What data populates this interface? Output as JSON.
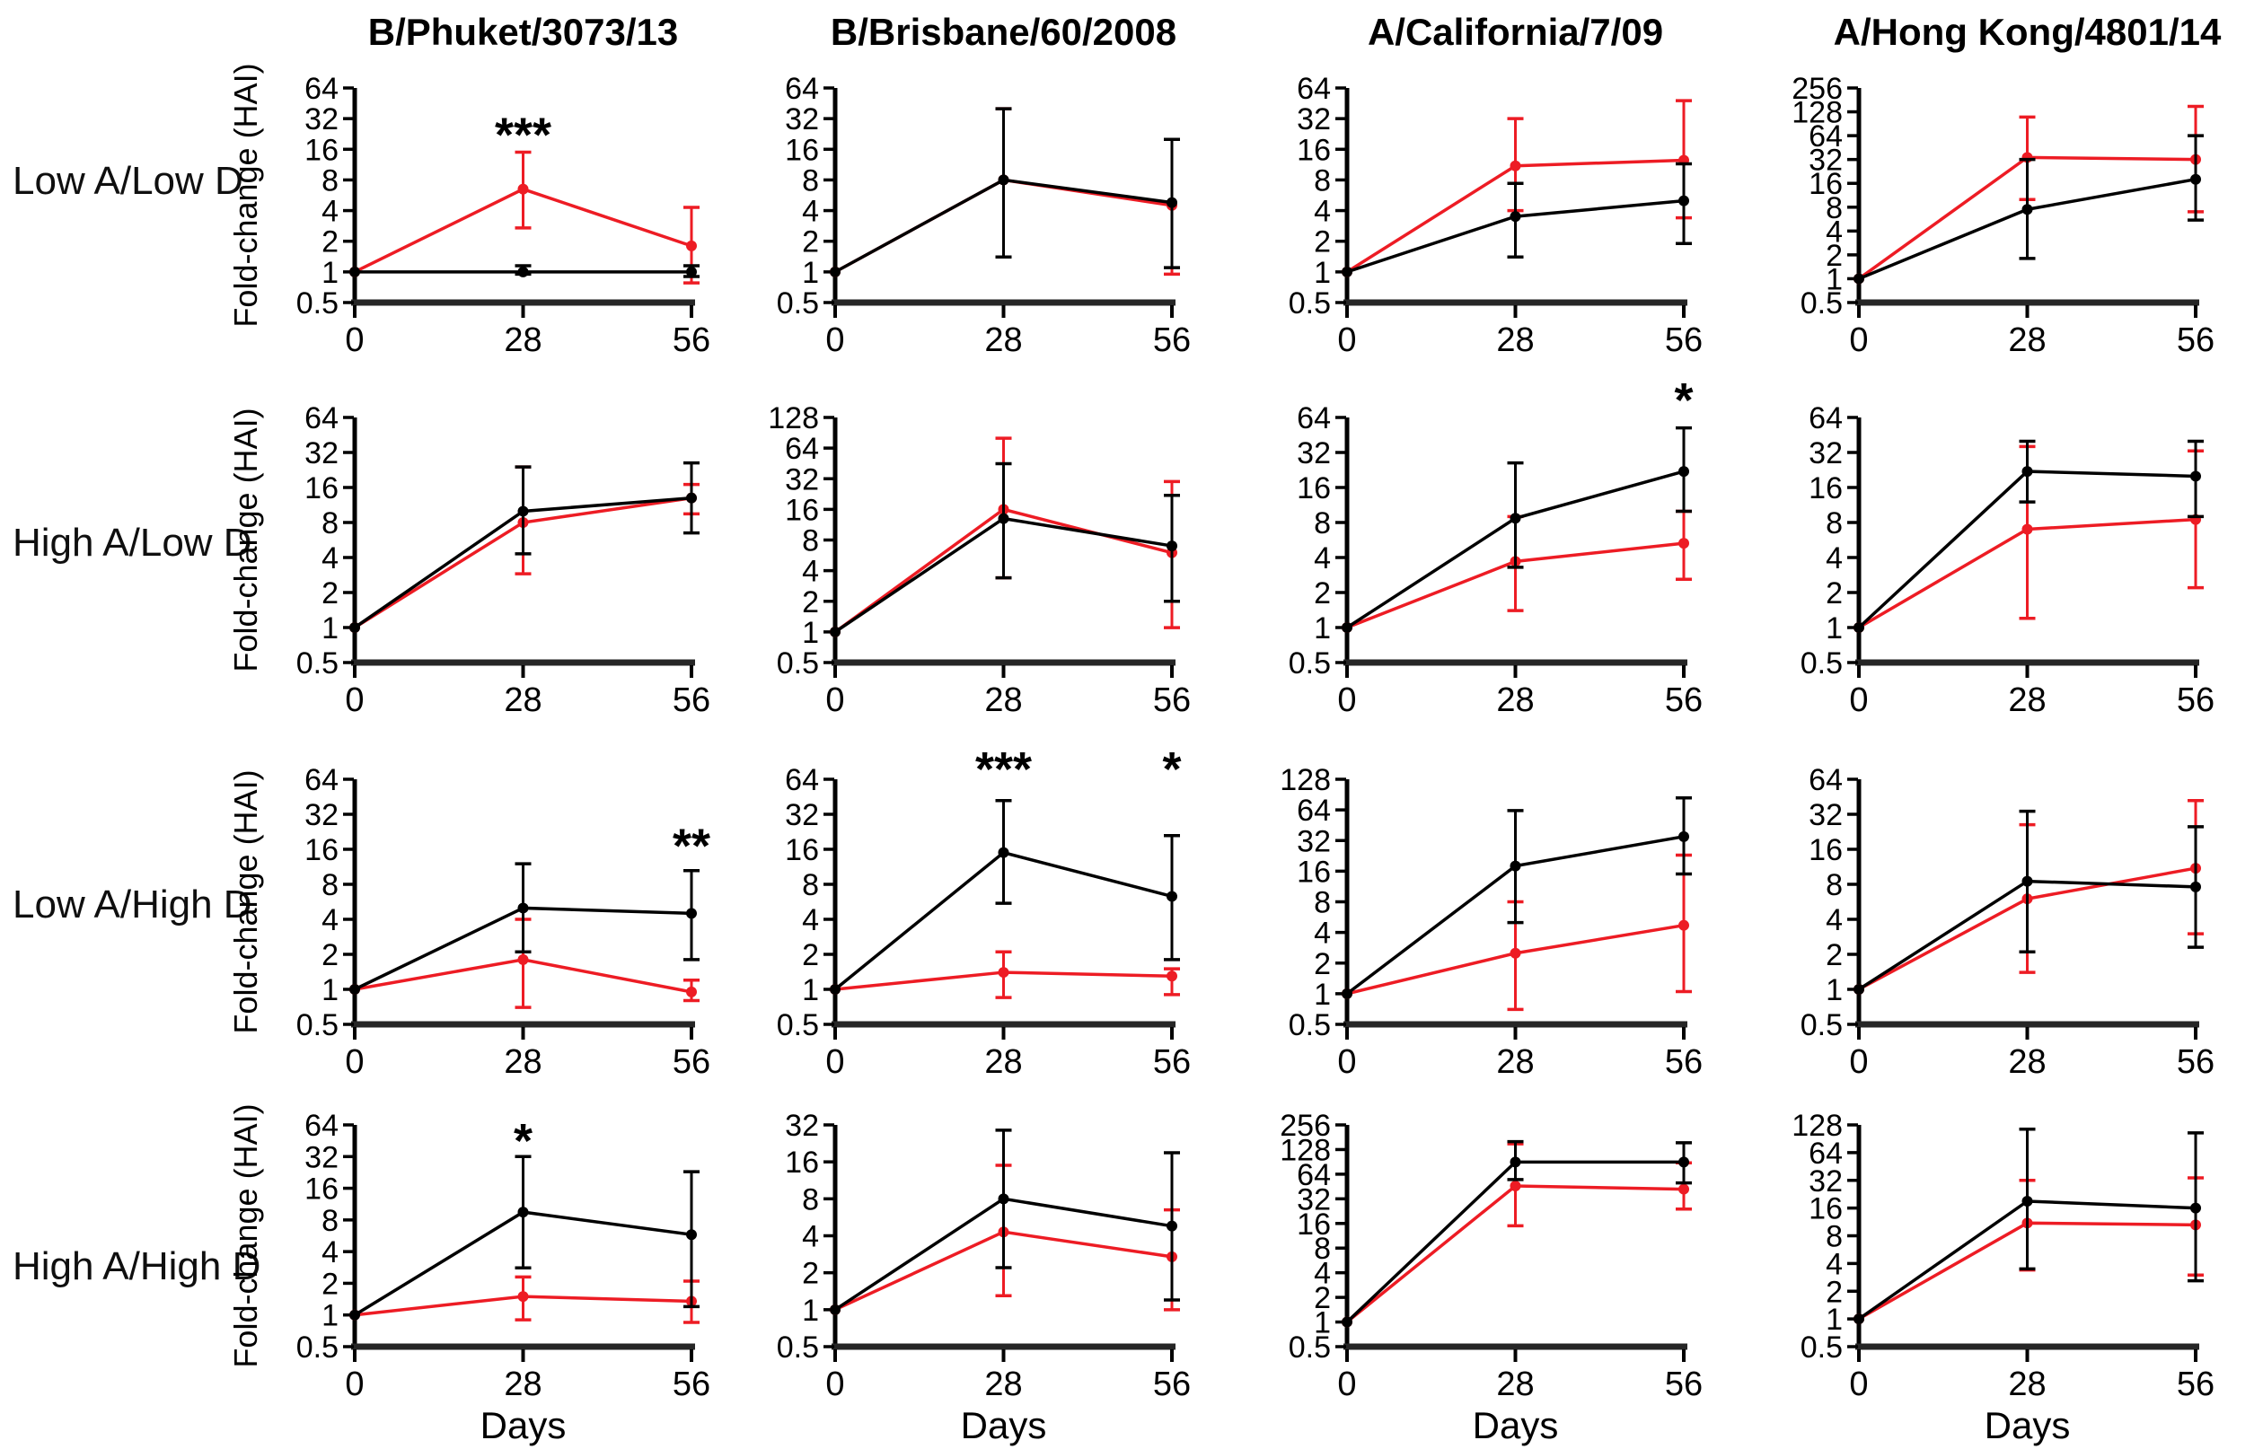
{
  "figure": {
    "column_titles": [
      "B/Phuket/3073/13",
      "B/Brisbane/60/2008",
      "A/California/7/09",
      "A/Hong Kong/4801/14"
    ],
    "row_labels": [
      "Low A/Low D",
      "High A/Low D",
      "Low A/High D",
      "High A/High D"
    ],
    "y_axis_label": "Fold-change (HAI)",
    "x_axis_label": "Days",
    "x_tick_labels": [
      "0",
      "28",
      "56"
    ],
    "colors": {
      "series_black": "#000000",
      "series_red": "#ed1c24",
      "axis": "#000000",
      "baseline_axis": "#262626"
    }
  },
  "chart_data": {
    "type": "line",
    "x": [
      0,
      28,
      56
    ],
    "xlabel": "Days",
    "ylabel": "Fold-change (HAI)",
    "y_scale": "log2",
    "ymin": 0.5,
    "grid": false,
    "legend": "none",
    "panels": [
      {
        "row": 0,
        "col": 0,
        "strain": "B/Phuket/3073/13",
        "group": "Low A/Low D",
        "ymax": 64,
        "sig": [
          {
            "x": 28,
            "y": 22,
            "label": "***"
          }
        ],
        "series": [
          {
            "id": "red",
            "y": [
              1,
              6.5,
              1.8
            ],
            "err_lo": [
              1,
              2.7,
              0.78
            ],
            "err_hi": [
              1,
              15,
              4.3
            ]
          },
          {
            "id": "black",
            "y": [
              1,
              1,
              1
            ],
            "err_lo": [
              1,
              0.95,
              0.9
            ],
            "err_hi": [
              1,
              1.15,
              1.15
            ]
          }
        ]
      },
      {
        "row": 0,
        "col": 1,
        "strain": "B/Brisbane/60/2008",
        "group": "Low A/Low D",
        "ymax": 64,
        "sig": [],
        "series": [
          {
            "id": "red",
            "y": [
              1,
              8,
              4.5
            ],
            "err_lo": [
              1,
              1.4,
              0.95
            ],
            "err_hi": [
              1,
              40,
              20
            ]
          },
          {
            "id": "black",
            "y": [
              1,
              8,
              4.8
            ],
            "err_lo": [
              1,
              1.4,
              1.1
            ],
            "err_hi": [
              1,
              40,
              20
            ]
          }
        ]
      },
      {
        "row": 0,
        "col": 2,
        "strain": "A/California/7/09",
        "group": "Low A/Low D",
        "ymax": 64,
        "sig": [],
        "series": [
          {
            "id": "red",
            "y": [
              1,
              11,
              12.5
            ],
            "err_lo": [
              1,
              4,
              3.4
            ],
            "err_hi": [
              1,
              32,
              48
            ]
          },
          {
            "id": "black",
            "y": [
              1,
              3.5,
              5
            ],
            "err_lo": [
              1,
              1.4,
              1.9
            ],
            "err_hi": [
              1,
              7.4,
              11.5
            ]
          }
        ]
      },
      {
        "row": 0,
        "col": 3,
        "strain": "A/Hong Kong/4801/14",
        "group": "Low A/Low D",
        "ymax": 256,
        "sig": [],
        "series": [
          {
            "id": "red",
            "y": [
              1,
              34,
              32
            ],
            "err_lo": [
              1,
              10,
              7
            ],
            "err_hi": [
              1,
              110,
              150
            ]
          },
          {
            "id": "black",
            "y": [
              1,
              7.5,
              18
            ],
            "err_lo": [
              1,
              1.8,
              5.5
            ],
            "err_hi": [
              1,
              32,
              64
            ]
          }
        ]
      },
      {
        "row": 1,
        "col": 0,
        "strain": "B/Phuket/3073/13",
        "group": "High A/Low D",
        "ymax": 64,
        "sig": [],
        "series": [
          {
            "id": "red",
            "y": [
              1,
              8,
              13
            ],
            "err_lo": [
              1,
              2.9,
              9.5
            ],
            "err_hi": [
              1,
              24,
              17
            ]
          },
          {
            "id": "black",
            "y": [
              1,
              10,
              13
            ],
            "err_lo": [
              1,
              4.3,
              6.5
            ],
            "err_hi": [
              1,
              24,
              26
            ]
          }
        ]
      },
      {
        "row": 1,
        "col": 1,
        "strain": "B/Brisbane/60/2008",
        "group": "High A/Low D",
        "ymax": 128,
        "sig": [],
        "series": [
          {
            "id": "red",
            "y": [
              1,
              16,
              6
            ],
            "err_lo": [
              1,
              3.4,
              1.1
            ],
            "err_hi": [
              1,
              80,
              30
            ]
          },
          {
            "id": "black",
            "y": [
              1,
              13,
              7
            ],
            "err_lo": [
              1,
              3.4,
              2
            ],
            "err_hi": [
              1,
              45,
              22
            ]
          }
        ]
      },
      {
        "row": 1,
        "col": 2,
        "strain": "A/California/7/09",
        "group": "High A/Low D",
        "ymax": 64,
        "sig": [
          {
            "x": 56,
            "y": 90,
            "label": "*"
          }
        ],
        "series": [
          {
            "id": "red",
            "y": [
              1,
              3.7,
              5.3
            ],
            "err_lo": [
              1,
              1.4,
              2.6
            ],
            "err_hi": [
              1,
              9,
              10
            ]
          },
          {
            "id": "black",
            "y": [
              1,
              8.7,
              22
            ],
            "err_lo": [
              1,
              3.3,
              10
            ],
            "err_hi": [
              1,
              26,
              52
            ]
          }
        ]
      },
      {
        "row": 1,
        "col": 3,
        "strain": "A/Hong Kong/4801/14",
        "group": "High A/Low D",
        "ymax": 64,
        "sig": [],
        "series": [
          {
            "id": "red",
            "y": [
              1,
              7,
              8.5
            ],
            "err_lo": [
              1,
              1.2,
              2.2
            ],
            "err_hi": [
              1,
              36,
              33
            ]
          },
          {
            "id": "black",
            "y": [
              1,
              22,
              20
            ],
            "err_lo": [
              1,
              12,
              9
            ],
            "err_hi": [
              1,
              40,
              40
            ]
          }
        ]
      },
      {
        "row": 2,
        "col": 0,
        "strain": "B/Phuket/3073/13",
        "group": "Low A/High D",
        "ymax": 64,
        "sig": [
          {
            "x": 56,
            "y": 17,
            "label": "**"
          }
        ],
        "series": [
          {
            "id": "red",
            "y": [
              1,
              1.8,
              0.95
            ],
            "err_lo": [
              1,
              0.7,
              0.8
            ],
            "err_hi": [
              1,
              4,
              1.2
            ]
          },
          {
            "id": "black",
            "y": [
              1,
              5,
              4.5
            ],
            "err_lo": [
              1,
              2.1,
              1.8
            ],
            "err_hi": [
              1,
              12,
              10.5
            ]
          }
        ]
      },
      {
        "row": 2,
        "col": 1,
        "strain": "B/Brisbane/60/2008",
        "group": "Low A/High D",
        "ymax": 64,
        "sig": [
          {
            "x": 28,
            "y": 78,
            "label": "***"
          },
          {
            "x": 56,
            "y": 78,
            "label": "*"
          }
        ],
        "series": [
          {
            "id": "red",
            "y": [
              1,
              1.4,
              1.3
            ],
            "err_lo": [
              1,
              0.85,
              0.9
            ],
            "err_hi": [
              1,
              2.1,
              1.5
            ]
          },
          {
            "id": "black",
            "y": [
              1,
              15,
              6.3
            ],
            "err_lo": [
              1,
              5.5,
              1.8
            ],
            "err_hi": [
              1,
              42,
              21
            ]
          }
        ]
      },
      {
        "row": 2,
        "col": 2,
        "strain": "A/California/7/09",
        "group": "Low A/High D",
        "ymax": 128,
        "sig": [],
        "series": [
          {
            "id": "red",
            "y": [
              1,
              2.5,
              4.7
            ],
            "err_lo": [
              1,
              0.7,
              1.05
            ],
            "err_hi": [
              1,
              8,
              23
            ]
          },
          {
            "id": "black",
            "y": [
              1,
              18,
              35
            ],
            "err_lo": [
              1,
              5,
              15
            ],
            "err_hi": [
              1,
              63,
              84
            ]
          }
        ]
      },
      {
        "row": 2,
        "col": 3,
        "strain": "A/Hong Kong/4801/14",
        "group": "Low A/High D",
        "ymax": 64,
        "sig": [],
        "series": [
          {
            "id": "red",
            "y": [
              1,
              6,
              11
            ],
            "err_lo": [
              1,
              1.4,
              3
            ],
            "err_hi": [
              1,
              26,
              42
            ]
          },
          {
            "id": "black",
            "y": [
              1,
              8.5,
              7.6
            ],
            "err_lo": [
              1,
              2.1,
              2.3
            ],
            "err_hi": [
              1,
              34,
              25
            ]
          }
        ]
      },
      {
        "row": 3,
        "col": 0,
        "strain": "B/Phuket/3073/13",
        "group": "High A/High D",
        "ymax": 64,
        "sig": [
          {
            "x": 28,
            "y": 45,
            "label": "*"
          }
        ],
        "series": [
          {
            "id": "red",
            "y": [
              1,
              1.5,
              1.35
            ],
            "err_lo": [
              1,
              0.9,
              0.85
            ],
            "err_hi": [
              1,
              2.3,
              2.1
            ]
          },
          {
            "id": "black",
            "y": [
              1,
              9.5,
              5.8
            ],
            "err_lo": [
              1,
              2.8,
              1.2
            ],
            "err_hi": [
              1,
              32,
              23
            ]
          }
        ]
      },
      {
        "row": 3,
        "col": 1,
        "strain": "B/Brisbane/60/2008",
        "group": "High A/High D",
        "ymax": 32,
        "sig": [],
        "series": [
          {
            "id": "red",
            "y": [
              1,
              4.3,
              2.7
            ],
            "err_lo": [
              1,
              1.3,
              1.0
            ],
            "err_hi": [
              1,
              15,
              6.5
            ]
          },
          {
            "id": "black",
            "y": [
              1,
              8,
              4.8
            ],
            "err_lo": [
              1,
              2.2,
              1.2
            ],
            "err_hi": [
              1,
              29,
              19
            ]
          }
        ]
      },
      {
        "row": 3,
        "col": 2,
        "strain": "A/California/7/09",
        "group": "High A/High D",
        "ymax": 256,
        "sig": [],
        "series": [
          {
            "id": "red",
            "y": [
              1,
              46,
              42
            ],
            "err_lo": [
              1,
              15,
              24
            ],
            "err_hi": [
              1,
              150,
              88
            ]
          },
          {
            "id": "black",
            "y": [
              1,
              90,
              90
            ],
            "err_lo": [
              1,
              55,
              50
            ],
            "err_hi": [
              1,
              160,
              155
            ]
          }
        ]
      },
      {
        "row": 3,
        "col": 3,
        "strain": "A/Hong Kong/4801/14",
        "group": "High A/High D",
        "ymax": 128,
        "sig": [],
        "series": [
          {
            "id": "red",
            "y": [
              1,
              11,
              10.5
            ],
            "err_lo": [
              1,
              3.4,
              3
            ],
            "err_hi": [
              1,
              32,
              34
            ]
          },
          {
            "id": "black",
            "y": [
              1,
              19,
              16
            ],
            "err_lo": [
              1,
              3.5,
              2.6
            ],
            "err_hi": [
              1,
              115,
              105
            ]
          }
        ]
      }
    ]
  }
}
